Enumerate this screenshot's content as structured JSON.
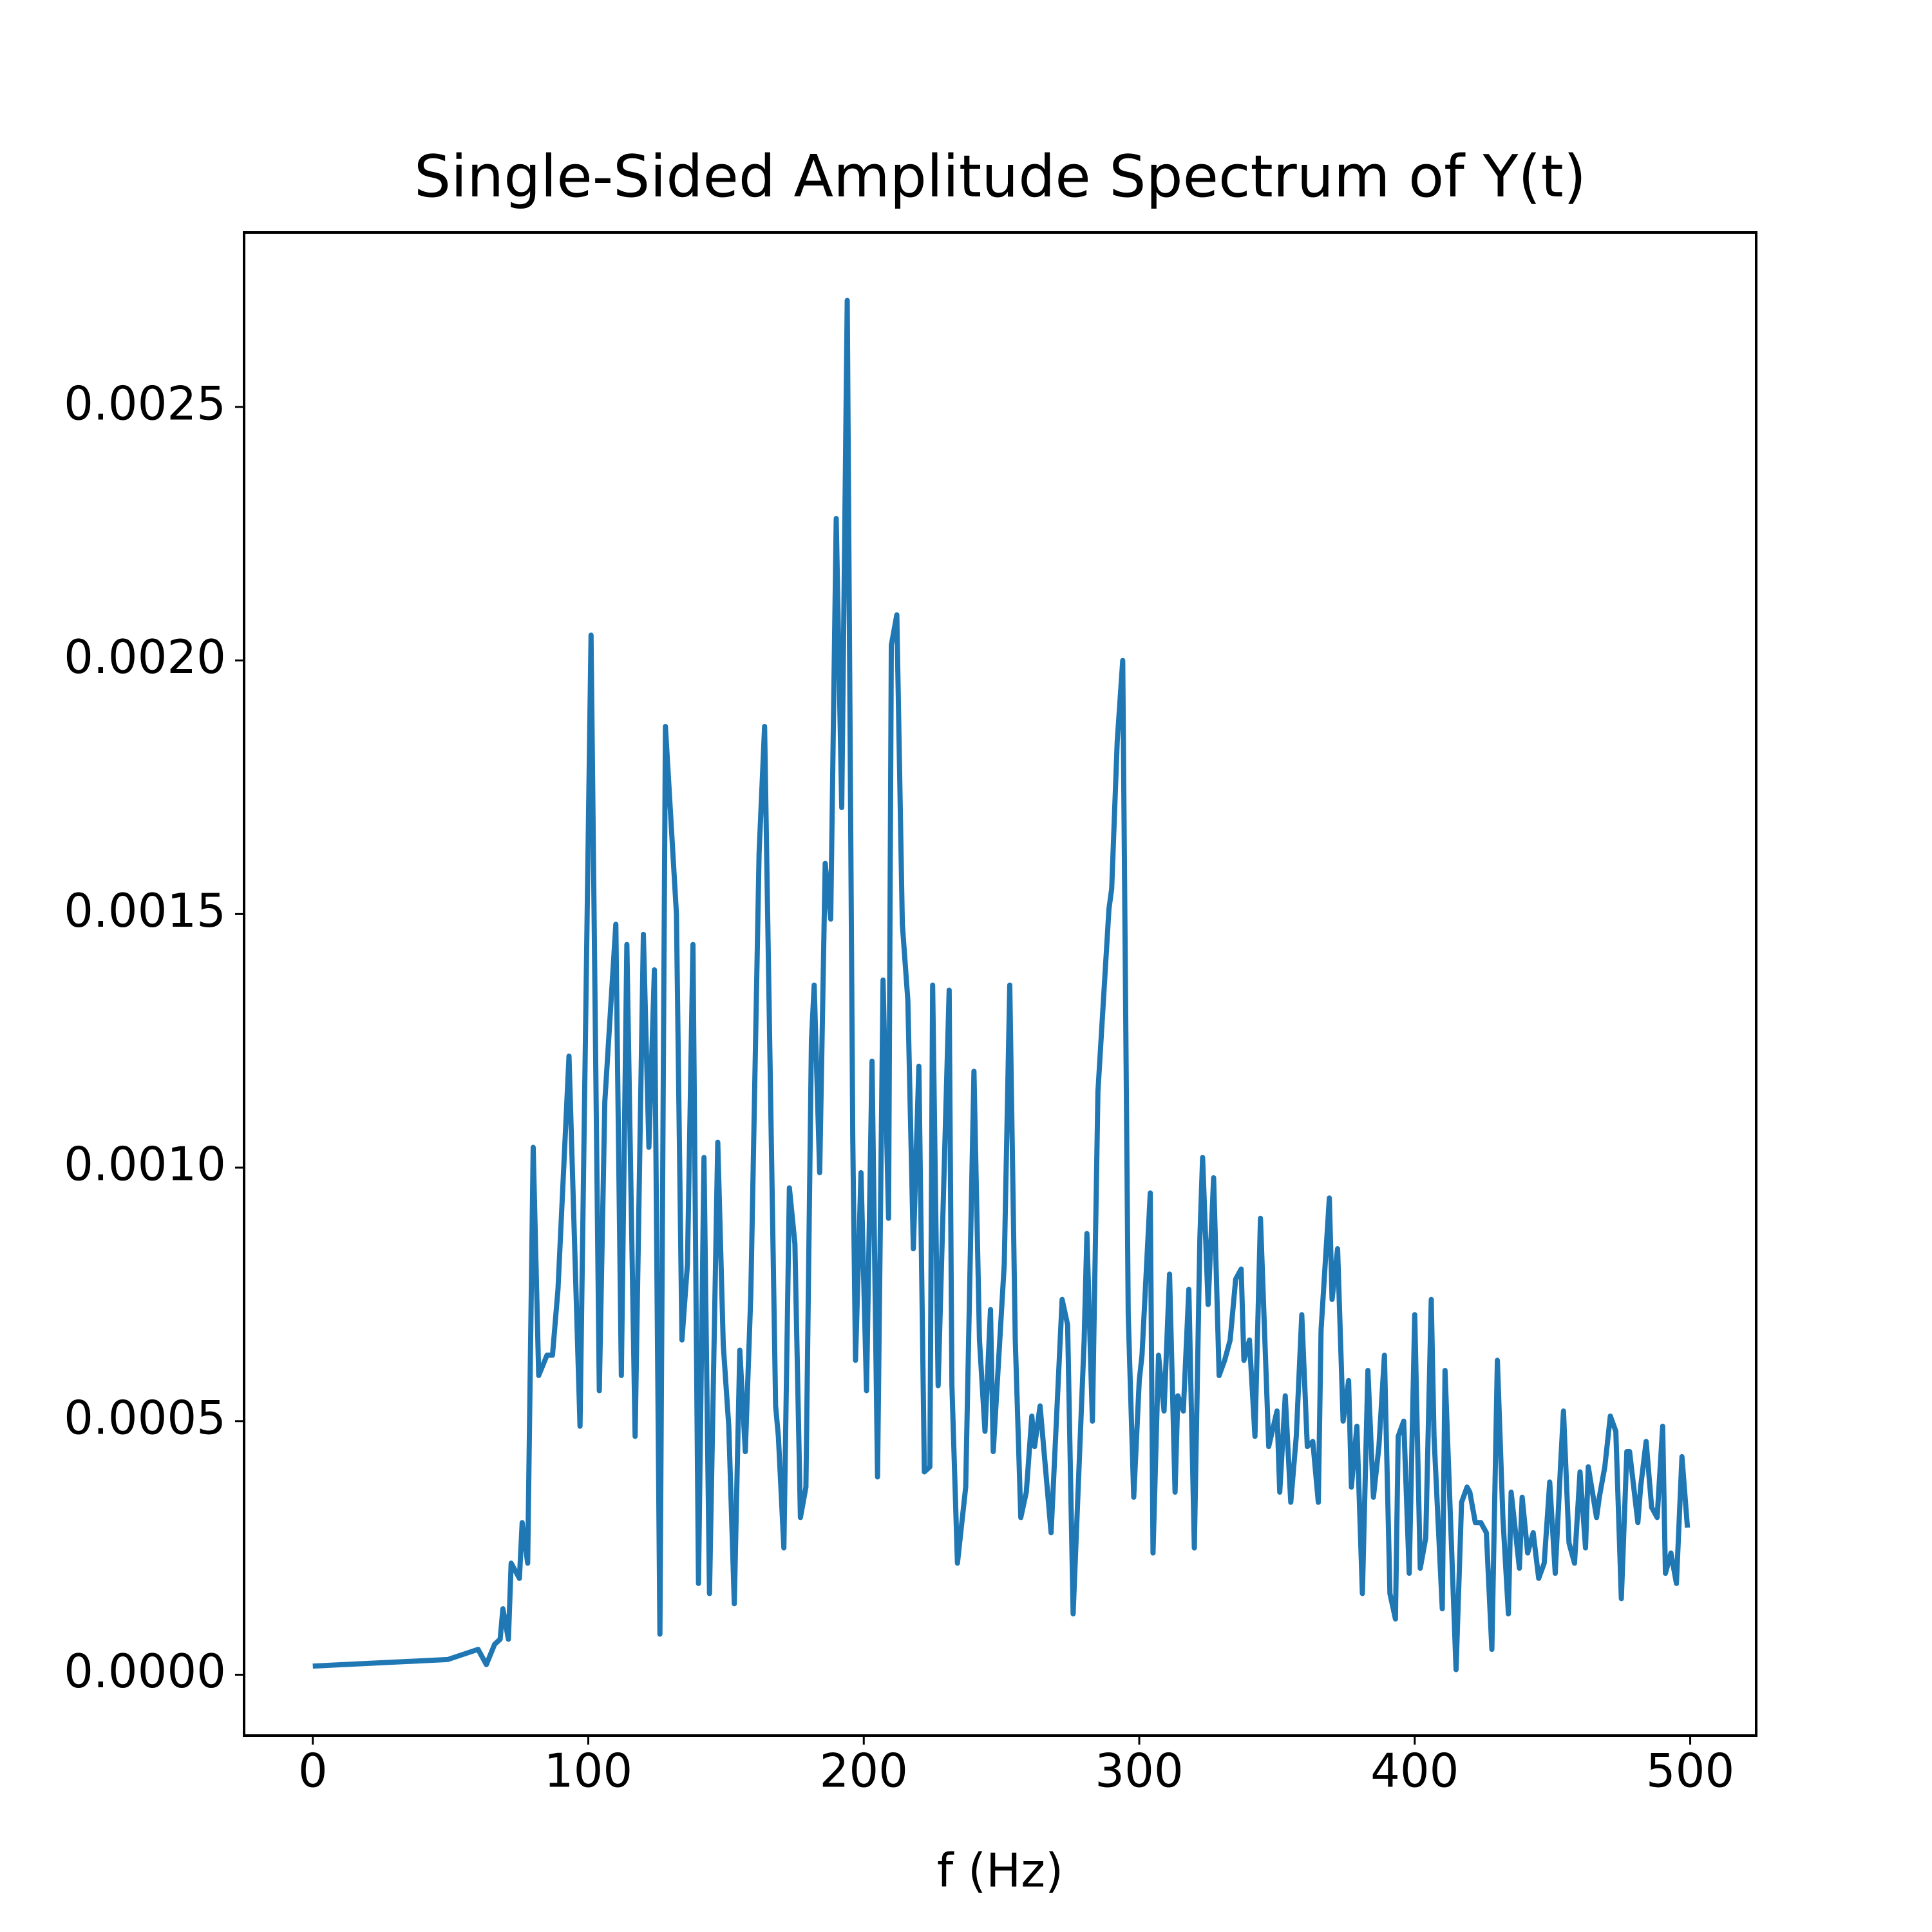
{
  "chart_data": {
    "type": "line",
    "title": "Single-Sided Amplitude Spectrum of Y(t)",
    "x_label": "f (Hz)",
    "x": [
      0,
      49,
      60,
      63,
      66,
      68,
      69,
      71,
      72,
      75,
      76,
      78,
      80,
      82,
      85,
      87,
      89,
      93,
      97,
      101,
      104,
      106,
      110,
      112,
      114,
      117,
      120,
      122,
      124,
      126,
      128,
      132,
      134,
      136,
      138,
      140,
      142,
      144,
      147,
      149,
      151,
      153,
      155,
      157,
      159,
      162,
      164,
      168,
      169,
      171,
      173,
      175,
      177,
      179,
      181,
      182,
      184,
      186,
      188,
      190,
      192,
      194,
      196,
      197,
      199,
      201,
      203,
      205,
      207,
      209,
      210,
      212,
      214,
      216,
      218,
      220,
      222,
      224,
      225,
      227,
      231,
      232,
      234,
      237,
      240,
      242,
      244,
      246,
      247,
      251,
      253,
      255,
      257,
      259,
      261,
      262,
      264,
      268,
      272,
      274,
      276,
      280,
      281,
      283,
      285,
      289,
      290,
      292,
      294,
      296,
      298,
      300,
      301,
      304,
      305,
      307,
      309,
      311,
      313,
      314,
      316,
      318,
      320,
      322,
      323,
      325,
      327,
      329,
      331,
      333,
      335,
      337,
      338,
      340,
      342,
      344,
      347,
      350,
      351,
      353,
      355,
      357,
      359,
      361,
      363,
      365,
      366,
      369,
      370,
      372,
      374,
      376,
      377,
      379,
      381,
      383,
      385,
      387,
      389,
      391,
      393,
      394,
      396,
      398,
      400,
      402,
      404,
      406,
      407,
      410,
      411,
      415,
      417,
      419,
      420,
      422,
      424,
      426,
      428,
      430,
      432,
      434,
      435,
      438,
      439,
      441,
      443,
      445,
      447,
      449,
      451,
      453,
      454,
      456,
      458,
      460,
      462,
      463,
      466,
      467,
      469,
      471,
      473,
      475,
      477,
      478,
      481,
      482,
      484,
      486,
      488,
      490,
      491,
      493,
      495,
      497,
      499
    ],
    "series": [
      {
        "color": "#1f77b4",
        "values": [
          1.7e-05,
          3e-05,
          5e-05,
          2e-05,
          6e-05,
          7e-05,
          0.00013,
          7e-05,
          0.00022,
          0.00019,
          0.0003,
          0.00022,
          0.00104,
          0.00059,
          0.00063,
          0.00063,
          0.00076,
          0.00122,
          0.00049,
          0.00205,
          0.00056,
          0.00113,
          0.00148,
          0.00059,
          0.00144,
          0.00047,
          0.00146,
          0.00104,
          0.00139,
          8e-05,
          0.00187,
          0.0015,
          0.00066,
          0.00081,
          0.00144,
          0.00018,
          0.00102,
          0.00016,
          0.00105,
          0.00065,
          0.00049,
          0.00014,
          0.00064,
          0.00044,
          0.00075,
          0.00162,
          0.00187,
          0.00053,
          0.00047,
          0.00025,
          0.00096,
          0.00085,
          0.00031,
          0.00037,
          0.00125,
          0.00136,
          0.00099,
          0.0016,
          0.00149,
          0.00228,
          0.00171,
          0.00271,
          0.00106,
          0.00062,
          0.00099,
          0.00056,
          0.00121,
          0.00039,
          0.00137,
          0.0009,
          0.00203,
          0.00209,
          0.00148,
          0.00133,
          0.00084,
          0.0012,
          0.0004,
          0.00041,
          0.00136,
          0.00057,
          0.00135,
          0.00057,
          0.00022,
          0.00037,
          0.00119,
          0.00066,
          0.00048,
          0.00072,
          0.00044,
          0.00081,
          0.00136,
          0.00066,
          0.00031,
          0.00036,
          0.00051,
          0.00045,
          0.00053,
          0.00028,
          0.00074,
          0.00069,
          0.00012,
          0.00066,
          0.00087,
          0.0005,
          0.00115,
          0.00151,
          0.00155,
          0.00184,
          0.002,
          0.00071,
          0.00035,
          0.00058,
          0.00063,
          0.00095,
          0.00024,
          0.00063,
          0.00052,
          0.00079,
          0.00036,
          0.00055,
          0.00052,
          0.00076,
          0.00025,
          0.00086,
          0.00102,
          0.00073,
          0.00098,
          0.00059,
          0.00062,
          0.00066,
          0.00078,
          0.0008,
          0.00062,
          0.00066,
          0.00047,
          0.0009,
          0.00045,
          0.00052,
          0.00036,
          0.00055,
          0.00034,
          0.00047,
          0.00071,
          0.00045,
          0.00046,
          0.00034,
          0.00068,
          0.00094,
          0.00074,
          0.00084,
          0.0005,
          0.00058,
          0.00037,
          0.00049,
          0.00016,
          0.0006,
          0.00035,
          0.00045,
          0.00063,
          0.00016,
          0.00011,
          0.00047,
          0.0005,
          0.0002,
          0.00071,
          0.00021,
          0.00027,
          0.00074,
          0.00047,
          0.00013,
          0.0006,
          1e-05,
          0.00034,
          0.00037,
          0.00036,
          0.0003,
          0.0003,
          0.00028,
          5e-05,
          0.00062,
          0.00031,
          0.00012,
          0.00036,
          0.00021,
          0.00035,
          0.00024,
          0.00028,
          0.00019,
          0.00022,
          0.00038,
          0.0002,
          0.00042,
          0.00052,
          0.00026,
          0.00022,
          0.0004,
          0.00025,
          0.00041,
          0.00031,
          0.00035,
          0.00041,
          0.00051,
          0.00048,
          0.00015,
          0.00044,
          0.00044,
          0.0003,
          0.00037,
          0.00046,
          0.00033,
          0.00031,
          0.00049,
          0.0002,
          0.00024,
          0.00018,
          0.00043,
          0.00029
        ]
      }
    ],
    "xlim": [
      -24.95,
      523.95
    ],
    "xticks": [
      0,
      100,
      200,
      300,
      400,
      500
    ],
    "ylim": [
      -0.00012,
      0.002844
    ],
    "yticks": [
      {
        "value": 0,
        "label": "0.0000"
      },
      0.0005,
      {
        "value": 0.001,
        "label": "0.0010"
      },
      0.0015,
      {
        "value": 0.002,
        "label": "0.0020"
      },
      0.0025
    ]
  }
}
